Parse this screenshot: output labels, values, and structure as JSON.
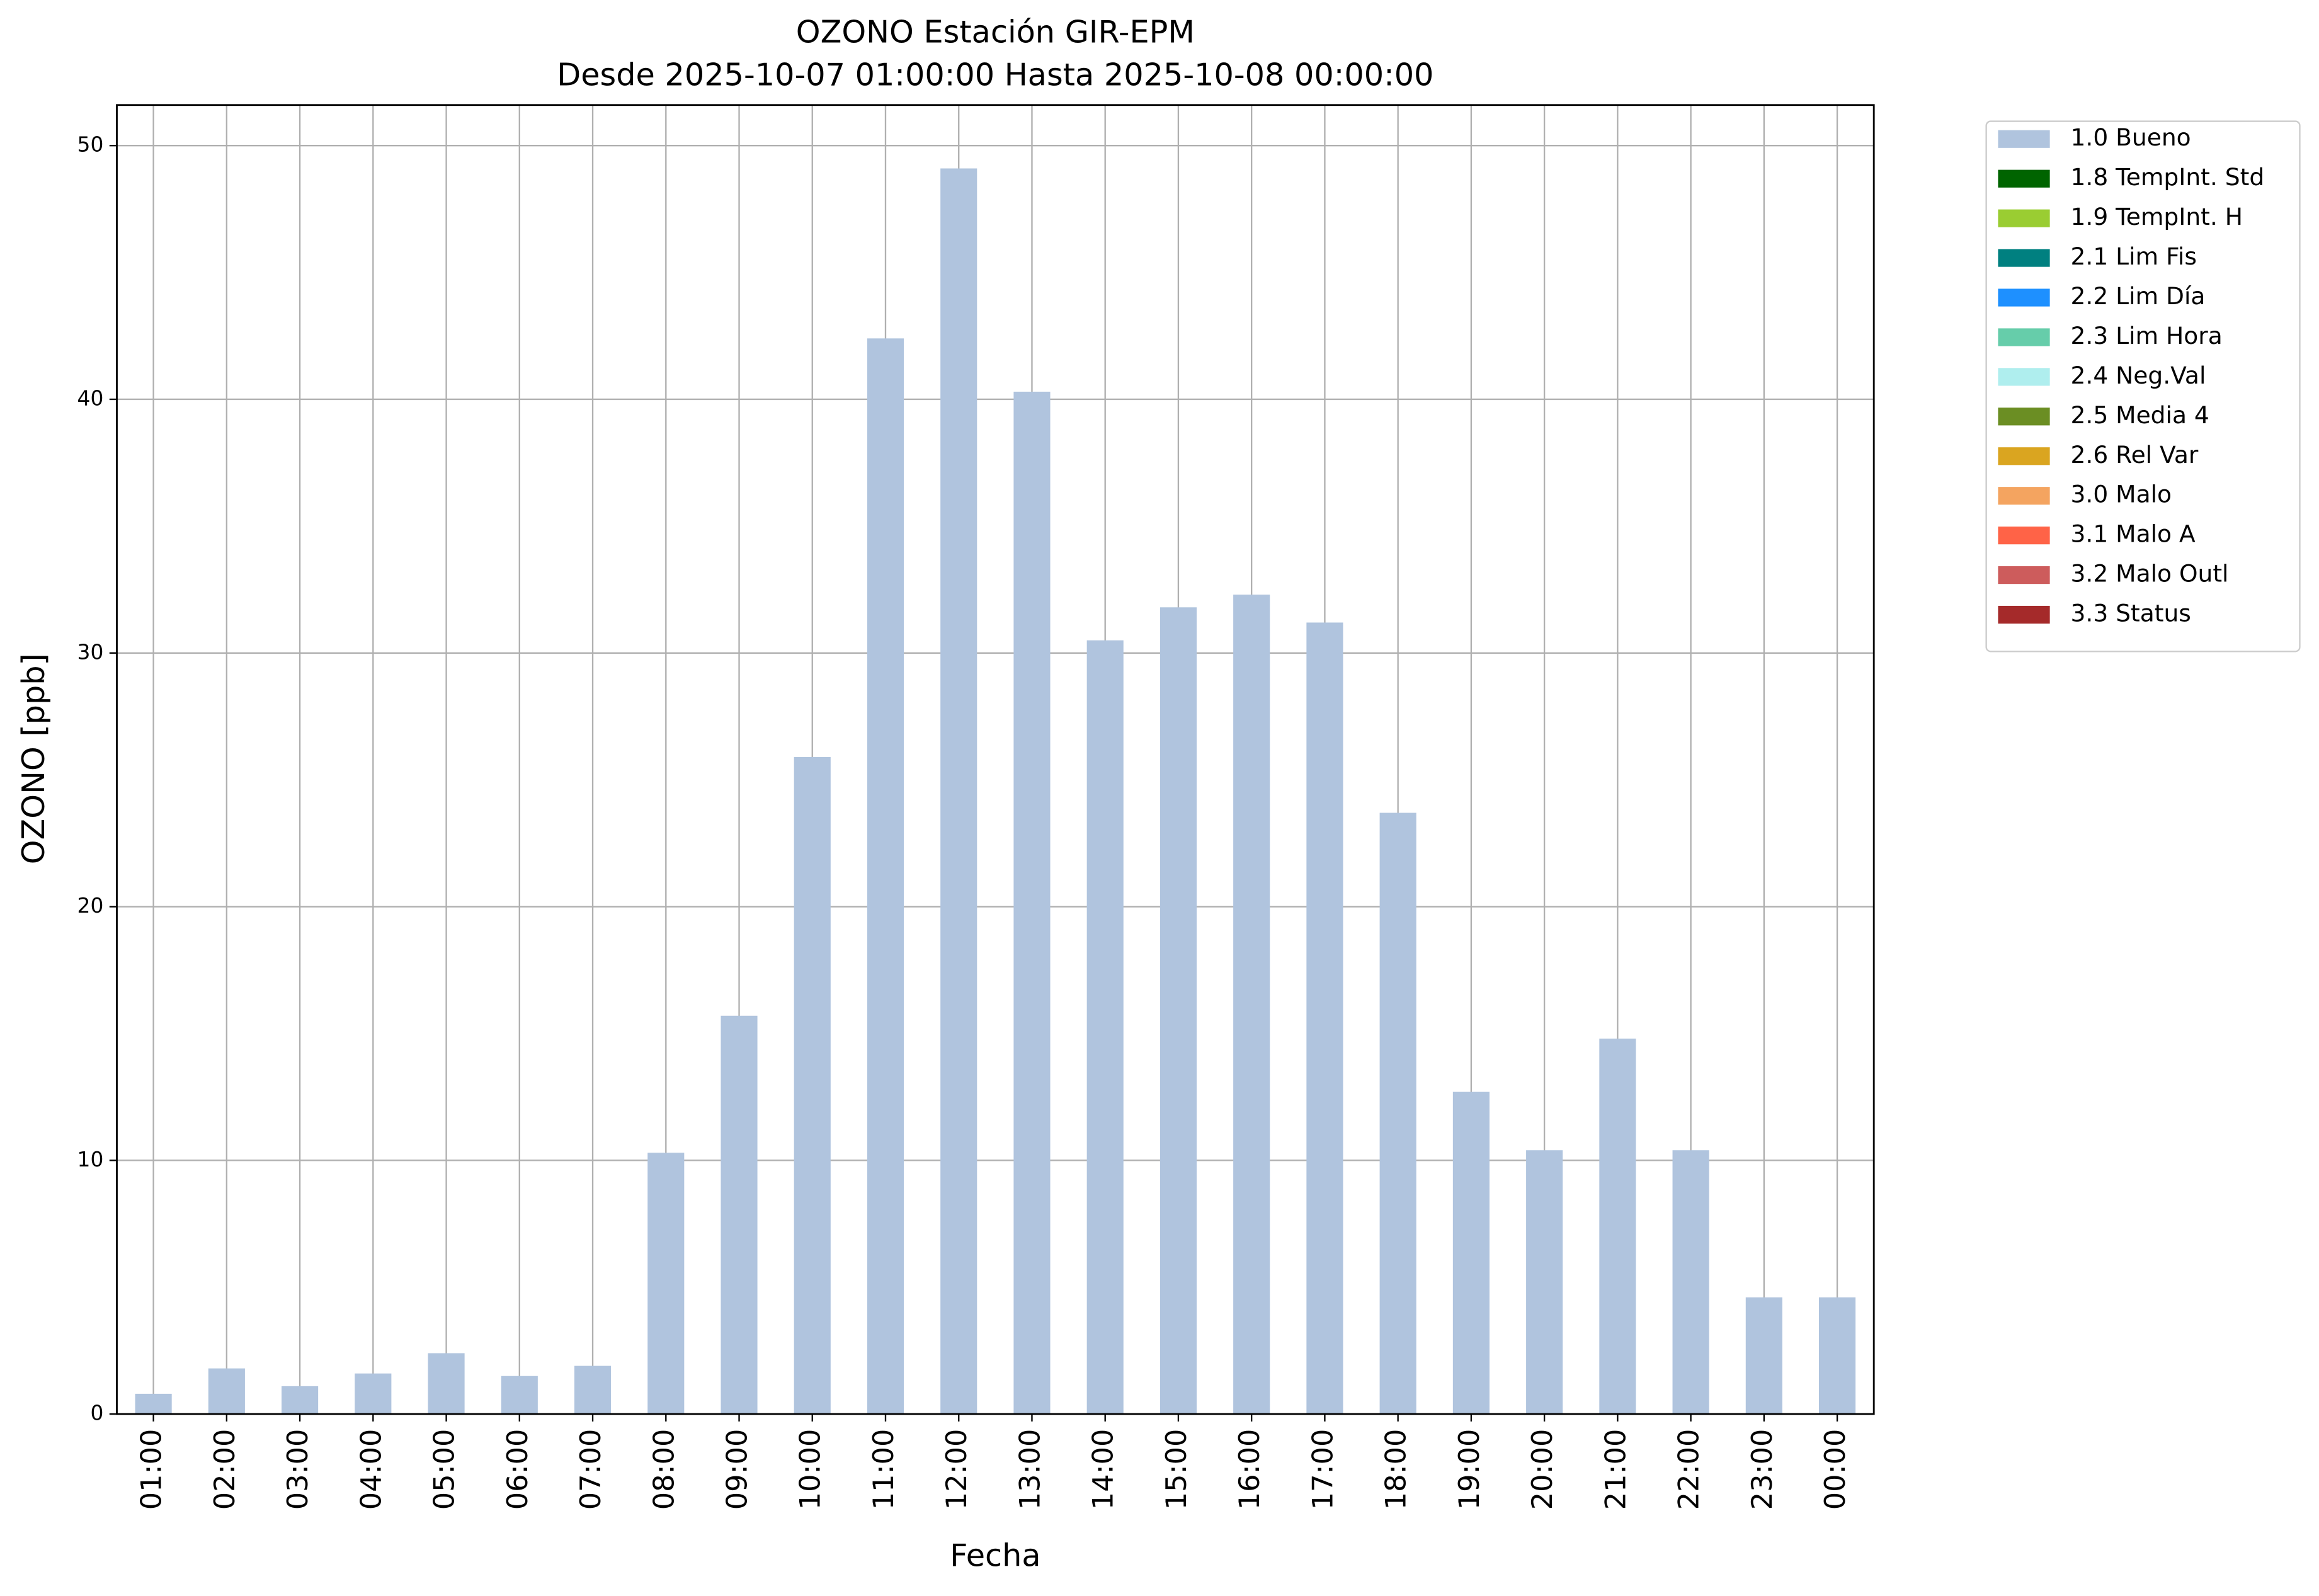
{
  "chart_data": {
    "type": "bar",
    "title": "OZONO Estación GIR-EPM",
    "subtitle": "Desde 2025-10-07 01:00:00 Hasta 2025-10-08 00:00:00",
    "x_label": "Fecha",
    "y_label": "OZONO [ppb]",
    "categories": [
      "01:00",
      "02:00",
      "03:00",
      "04:00",
      "05:00",
      "06:00",
      "07:00",
      "08:00",
      "09:00",
      "10:00",
      "11:00",
      "12:00",
      "13:00",
      "14:00",
      "15:00",
      "16:00",
      "17:00",
      "18:00",
      "19:00",
      "20:00",
      "21:00",
      "22:00",
      "23:00",
      "00:00"
    ],
    "series": [
      {
        "name": "1.0 Bueno",
        "color": "#b0c4de",
        "values": [
          0.8,
          1.8,
          1.1,
          1.6,
          2.4,
          1.5,
          1.9,
          10.3,
          15.7,
          25.9,
          42.4,
          49.1,
          40.3,
          30.5,
          31.8,
          32.3,
          31.2,
          23.7,
          12.7,
          10.4,
          14.8,
          10.4,
          4.6,
          4.6
        ]
      },
      {
        "name": "1.8 TempInt. Std",
        "color": "#006400"
      },
      {
        "name": "1.9 TempInt. H",
        "color": "#9acd32"
      },
      {
        "name": "2.1 Lim Fis",
        "color": "#008080"
      },
      {
        "name": "2.2 Lim Día",
        "color": "#1e90ff"
      },
      {
        "name": "2.3 Lim Hora",
        "color": "#66cdaa"
      },
      {
        "name": "2.4 Neg.Val",
        "color": "#afeeee"
      },
      {
        "name": "2.5 Media 4",
        "color": "#6b8e23"
      },
      {
        "name": "2.6 Rel Var",
        "color": "#daa520"
      },
      {
        "name": "3.0 Malo",
        "color": "#f4a460"
      },
      {
        "name": "3.1 Malo A",
        "color": "#ff6347"
      },
      {
        "name": "3.2 Malo Outl",
        "color": "#cd5c5c"
      },
      {
        "name": "3.3 Status",
        "color": "#a52a2a"
      }
    ],
    "ylim": [
      0,
      51.6
    ],
    "yticks": [
      0,
      10,
      20,
      30,
      40,
      50
    ],
    "grid": true,
    "legend": "outside-upper-right"
  }
}
